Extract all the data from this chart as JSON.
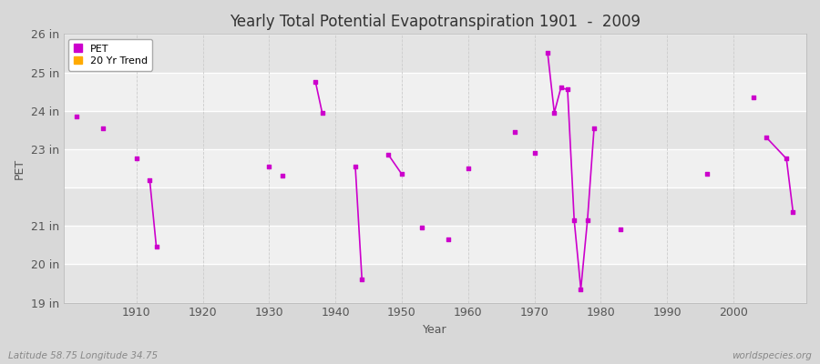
{
  "title": "Yearly Total Potential Evapotranspiration 1901  -  2009",
  "xlabel": "Year",
  "ylabel": "PET",
  "subtitle_left": "Latitude 58.75 Longitude 34.75",
  "subtitle_right": "worldspecies.org",
  "ylim": [
    19,
    26
  ],
  "xlim": [
    1899,
    2011
  ],
  "yticks": [
    19,
    20,
    21,
    22,
    23,
    24,
    25,
    26
  ],
  "ytick_labels": [
    "19 in",
    "20 in",
    "21 in",
    "",
    "23 in",
    "24 in",
    "25 in",
    "26 in"
  ],
  "xticks": [
    1910,
    1920,
    1930,
    1940,
    1950,
    1960,
    1970,
    1980,
    1990,
    2000
  ],
  "fig_background": "#d8d8d8",
  "plot_background": "#f0f0f0",
  "band_light": "#f0f0f0",
  "band_dark": "#e4e4e4",
  "plot_color": "#cc00cc",
  "trend_color": "#ffaa00",
  "grid_h_color": "#ffffff",
  "grid_v_color": "#cccccc",
  "pet_data": [
    [
      1901,
      23.85
    ],
    [
      1905,
      23.55
    ],
    [
      1910,
      22.75
    ],
    [
      1912,
      22.2
    ],
    [
      1913,
      20.45
    ],
    [
      1930,
      22.55
    ],
    [
      1932,
      22.3
    ],
    [
      1937,
      24.75
    ],
    [
      1938,
      23.95
    ],
    [
      1943,
      22.55
    ],
    [
      1944,
      19.6
    ],
    [
      1948,
      22.85
    ],
    [
      1950,
      22.35
    ],
    [
      1953,
      20.95
    ],
    [
      1957,
      20.65
    ],
    [
      1960,
      22.5
    ],
    [
      1967,
      23.45
    ],
    [
      1970,
      22.9
    ],
    [
      1972,
      25.5
    ],
    [
      1973,
      23.95
    ],
    [
      1974,
      24.6
    ],
    [
      1975,
      24.55
    ],
    [
      1976,
      21.15
    ],
    [
      1977,
      19.35
    ],
    [
      1978,
      21.15
    ],
    [
      1979,
      23.55
    ],
    [
      1983,
      20.9
    ],
    [
      1996,
      22.35
    ],
    [
      2003,
      24.35
    ],
    [
      2005,
      23.3
    ],
    [
      2008,
      22.75
    ],
    [
      2009,
      21.35
    ]
  ],
  "connected_segments": [
    [
      1912,
      1913
    ],
    [
      1937,
      1938
    ],
    [
      1943,
      1944
    ],
    [
      1948,
      1950
    ],
    [
      1972,
      1973,
      1974,
      1975,
      1976,
      1977,
      1978,
      1979
    ],
    [
      2005,
      2008,
      2009
    ]
  ]
}
